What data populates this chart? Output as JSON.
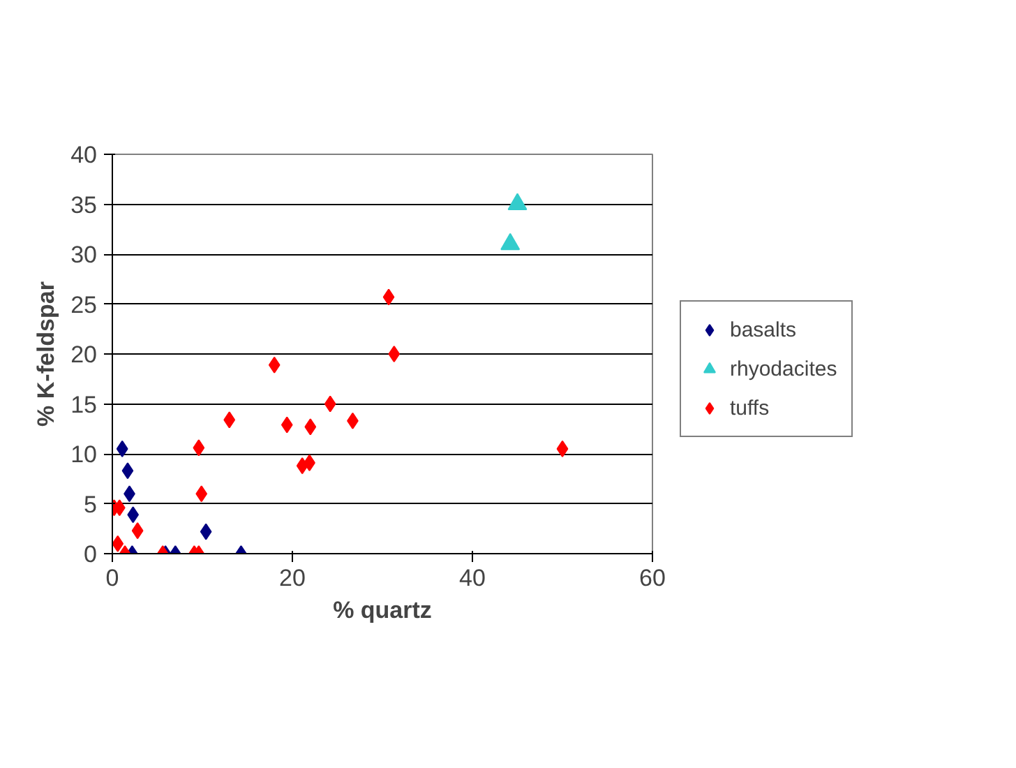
{
  "chart_data": {
    "type": "scatter",
    "xlabel": "% quartz",
    "ylabel": "% K-feldspar",
    "xlim": [
      0,
      60
    ],
    "ylim": [
      0,
      40
    ],
    "xticks": [
      0,
      20,
      40,
      60
    ],
    "yticks": [
      0,
      5,
      10,
      15,
      20,
      25,
      30,
      35,
      40
    ],
    "grid": "y",
    "legend": "right",
    "series": [
      {
        "name": "basalts",
        "color": "#000080",
        "marker": "diamond",
        "x": [
          1.1,
          1.7,
          1.9,
          2.3,
          10.4,
          14.3,
          7,
          5.9,
          2.2
        ],
        "values": [
          10.5,
          8.3,
          6.0,
          3.9,
          2.2,
          0,
          0,
          0,
          0
        ]
      },
      {
        "name": "rhyodacites",
        "color": "#33cccc",
        "marker": "triangle",
        "x": [
          45,
          44.2
        ],
        "values": [
          35,
          31
        ]
      },
      {
        "name": "tuffs",
        "color": "#ff0000",
        "marker": "diamond",
        "x": [
          0.2,
          0.8,
          2.8,
          0.6,
          1.4,
          5.6,
          9.1,
          9.6,
          9.9,
          9.6,
          13,
          18,
          19.4,
          22,
          24.2,
          26.7,
          30.7,
          31.3,
          50,
          21.1,
          21.9
        ],
        "values": [
          4.6,
          4.6,
          2.3,
          1.0,
          0,
          0,
          0,
          0,
          6.0,
          10.6,
          13.4,
          18.9,
          12.9,
          12.7,
          15.0,
          13.3,
          25.7,
          20,
          10.5,
          8.8,
          9.1
        ]
      }
    ]
  }
}
